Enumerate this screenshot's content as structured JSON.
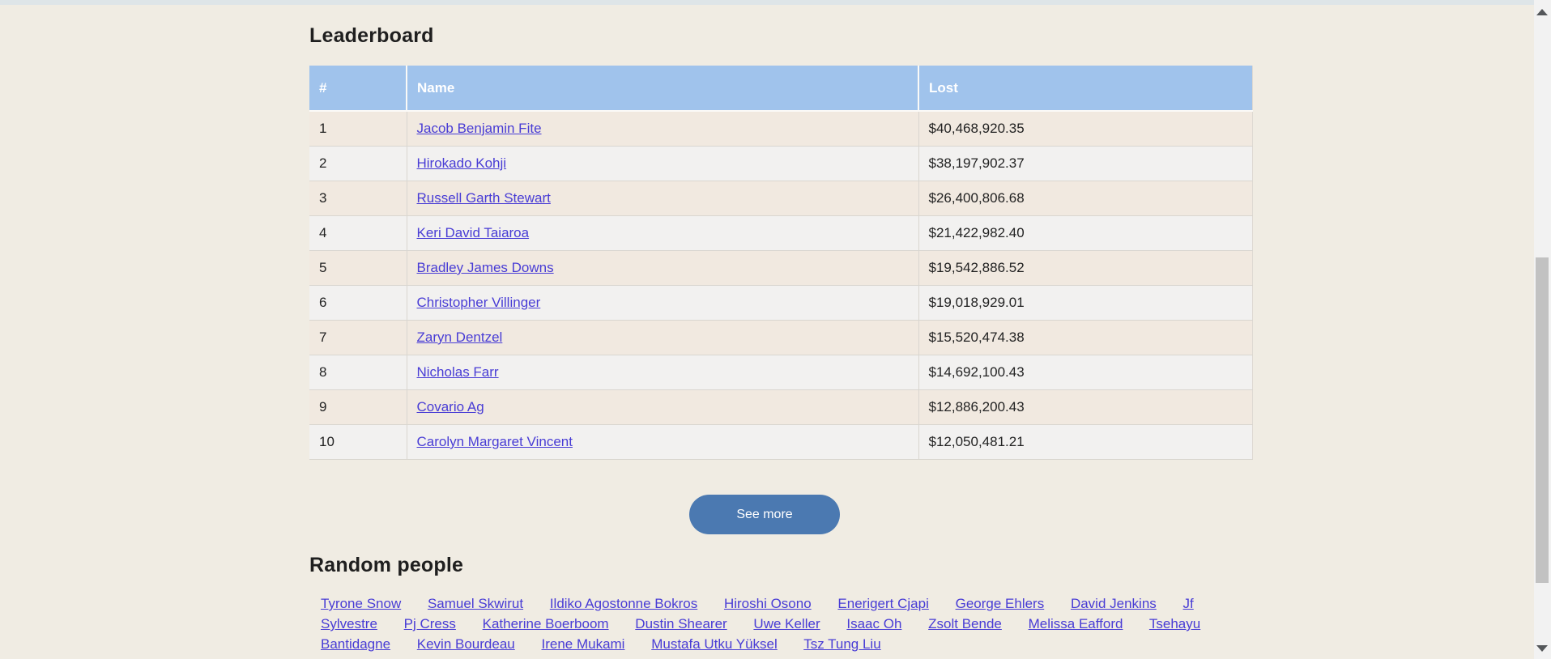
{
  "page": {
    "background_color": "#f0ece3",
    "topbar_color": "#dee5e8",
    "accent_blue": "#a0c3ec",
    "link_color": "#483cd5",
    "button_color": "#4b79b1"
  },
  "leaderboard": {
    "title": "Leaderboard",
    "table": {
      "headers": {
        "rank": "#",
        "name": "Name",
        "lost": "Lost"
      },
      "rows": [
        {
          "rank": "1",
          "name": "Jacob Benjamin Fite",
          "lost": "$40,468,920.35"
        },
        {
          "rank": "2",
          "name": "Hirokado Kohji",
          "lost": "$38,197,902.37"
        },
        {
          "rank": "3",
          "name": "Russell Garth Stewart",
          "lost": "$26,400,806.68"
        },
        {
          "rank": "4",
          "name": "Keri David Taiaroa",
          "lost": "$21,422,982.40"
        },
        {
          "rank": "5",
          "name": "Bradley James Downs",
          "lost": "$19,542,886.52"
        },
        {
          "rank": "6",
          "name": "Christopher Villinger",
          "lost": "$19,018,929.01"
        },
        {
          "rank": "7",
          "name": "Zaryn Dentzel",
          "lost": "$15,520,474.38"
        },
        {
          "rank": "8",
          "name": "Nicholas Farr",
          "lost": "$14,692,100.43"
        },
        {
          "rank": "9",
          "name": "Covario Ag",
          "lost": "$12,886,200.43"
        },
        {
          "rank": "10",
          "name": "Carolyn Margaret Vincent",
          "lost": "$12,050,481.21"
        }
      ]
    },
    "see_more_label": "See more"
  },
  "random_people": {
    "title": "Random people",
    "names": [
      "Tyrone Snow",
      "Samuel Skwirut",
      "Ildiko Agostonne Bokros",
      "Hiroshi Osono",
      "Enerigert Cjapi",
      "George Ehlers",
      "David Jenkins",
      "Jf Sylvestre",
      "Pj Cress",
      "Katherine Boerboom",
      "Dustin Shearer",
      "Uwe Keller",
      "Isaac Oh",
      "Zsolt Bende",
      "Melissa Eafford",
      "Tsehayu Bantidagne",
      "Kevin Bourdeau",
      "Irene Mukami",
      "Mustafa Utku Yüksel",
      "Tsz Tung Liu"
    ]
  }
}
